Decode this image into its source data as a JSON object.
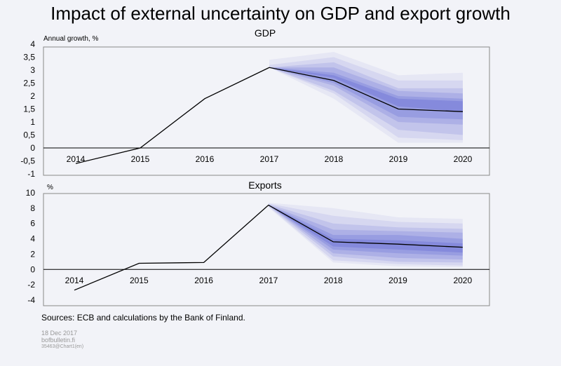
{
  "title": "Impact of external uncertainty on GDP and export growth",
  "sources": "Sources: ECB and calculations by the Bank of Finland.",
  "footer": {
    "date": "18 Dec 2017",
    "site": "bofbulletin.fi",
    "code": "35463@Chart1(en)"
  },
  "colors": {
    "background": "#f2f3f8",
    "line": "#000000",
    "fan_base": "#6b6fd6"
  },
  "chart_data": [
    {
      "type": "line",
      "title": "GDP",
      "unit_label": "Annual growth, %",
      "categories": [
        "2014",
        "2015",
        "2016",
        "2017",
        "2018",
        "2019",
        "2020"
      ],
      "ylim": [
        -1,
        4
      ],
      "yticks": [
        "-1",
        "-0,5",
        "0",
        "0,5",
        "1",
        "1,5",
        "2",
        "2,5",
        "3",
        "3,5",
        "4"
      ],
      "series": [
        {
          "values": [
            -0.6,
            0.0,
            1.9,
            3.1,
            2.6,
            1.5,
            1.4
          ]
        }
      ],
      "fan": {
        "start_index": 3,
        "bands": [
          {
            "lower": [
              3.1,
              2.7,
              1.6,
              1.4
            ],
            "upper": [
              3.1,
              2.8,
              1.9,
              1.8
            ]
          },
          {
            "lower": [
              3.1,
              2.5,
              1.2,
              1.1
            ],
            "upper": [
              3.1,
              2.9,
              2.0,
              1.9
            ]
          },
          {
            "lower": [
              3.1,
              2.4,
              1.0,
              0.9
            ],
            "upper": [
              3.1,
              3.1,
              2.2,
              2.1
            ]
          },
          {
            "lower": [
              3.1,
              2.2,
              0.7,
              0.5
            ],
            "upper": [
              3.1,
              3.3,
              2.3,
              2.3
            ]
          },
          {
            "lower": [
              3.1,
              2.1,
              0.4,
              0.3
            ],
            "upper": [
              3.2,
              3.5,
              2.6,
              2.6
            ]
          },
          {
            "lower": [
              3.1,
              1.9,
              0.2,
              0.2
            ],
            "upper": [
              3.4,
              3.7,
              2.8,
              2.9
            ]
          }
        ]
      }
    },
    {
      "type": "line",
      "title": "Exports",
      "unit_label": "%",
      "categories": [
        "2014",
        "2015",
        "2016",
        "2017",
        "2018",
        "2019",
        "2020"
      ],
      "ylim": [
        -4,
        10
      ],
      "yticks": [
        "-4",
        "-2",
        "0",
        "2",
        "4",
        "6",
        "8",
        "10"
      ],
      "series": [
        {
          "values": [
            -2.7,
            0.8,
            0.9,
            8.4,
            3.6,
            3.3,
            2.9
          ]
        }
      ],
      "fan": {
        "start_index": 3,
        "bands": [
          {
            "lower": [
              8.4,
              3.0,
              2.6,
              2.2
            ],
            "upper": [
              8.4,
              4.0,
              3.8,
              3.4
            ]
          },
          {
            "lower": [
              8.4,
              2.6,
              2.1,
              1.8
            ],
            "upper": [
              8.4,
              4.5,
              4.5,
              4.0
            ]
          },
          {
            "lower": [
              8.4,
              2.1,
              1.5,
              1.3
            ],
            "upper": [
              8.4,
              5.2,
              5.0,
              4.8
            ]
          },
          {
            "lower": [
              8.3,
              1.7,
              1.0,
              0.9
            ],
            "upper": [
              8.5,
              6.0,
              5.5,
              5.3
            ]
          },
          {
            "lower": [
              8.2,
              1.2,
              0.7,
              0.5
            ],
            "upper": [
              8.6,
              7.0,
              6.2,
              6.0
            ]
          },
          {
            "lower": [
              8.1,
              0.9,
              0.4,
              0.3
            ],
            "upper": [
              8.7,
              8.0,
              6.8,
              6.6
            ]
          }
        ]
      }
    }
  ]
}
